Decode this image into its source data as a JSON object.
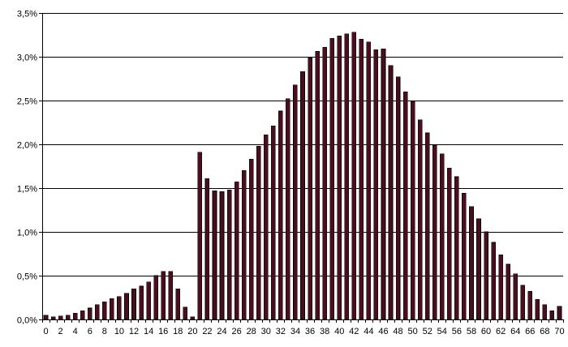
{
  "chart_data": {
    "type": "bar",
    "title": "",
    "xlabel": "",
    "ylabel": "",
    "categories": [
      0,
      1,
      2,
      3,
      4,
      5,
      6,
      7,
      8,
      9,
      10,
      11,
      12,
      13,
      14,
      15,
      16,
      17,
      18,
      19,
      20,
      21,
      22,
      23,
      24,
      25,
      26,
      27,
      28,
      29,
      30,
      31,
      32,
      33,
      34,
      35,
      36,
      37,
      38,
      39,
      40,
      41,
      42,
      43,
      44,
      45,
      46,
      47,
      48,
      49,
      50,
      51,
      52,
      53,
      54,
      55,
      56,
      57,
      58,
      59,
      60,
      61,
      62,
      63,
      64,
      65,
      66,
      67,
      68,
      69,
      70
    ],
    "x_tick_labels": [
      "0",
      "2",
      "4",
      "6",
      "8",
      "10",
      "12",
      "14",
      "16",
      "18",
      "20",
      "22",
      "24",
      "26",
      "28",
      "30",
      "32",
      "34",
      "36",
      "38",
      "40",
      "42",
      "44",
      "46",
      "48",
      "50",
      "52",
      "54",
      "56",
      "58",
      "60",
      "62",
      "64",
      "66",
      "68",
      "70"
    ],
    "y_tick_labels": [
      "0,0%",
      "0,5%",
      "1,0%",
      "1,5%",
      "2,0%",
      "2,5%",
      "3,0%",
      "3,5%"
    ],
    "y_ticks": [
      0,
      0.5,
      1.0,
      1.5,
      2.0,
      2.5,
      3.0,
      3.5
    ],
    "values": [
      0.05,
      0.03,
      0.04,
      0.05,
      0.07,
      0.1,
      0.13,
      0.17,
      0.2,
      0.24,
      0.26,
      0.3,
      0.35,
      0.38,
      0.43,
      0.5,
      0.55,
      0.55,
      0.35,
      0.14,
      0.03,
      1.91,
      1.61,
      1.47,
      1.46,
      1.48,
      1.57,
      1.7,
      1.83,
      1.98,
      2.11,
      2.21,
      2.38,
      2.52,
      2.68,
      2.83,
      2.99,
      3.06,
      3.11,
      3.21,
      3.24,
      3.26,
      3.28,
      3.2,
      3.17,
      3.08,
      3.09,
      2.9,
      2.77,
      2.6,
      2.49,
      2.28,
      2.13,
      1.99,
      1.89,
      1.73,
      1.63,
      1.44,
      1.29,
      1.15,
      1.0,
      0.88,
      0.74,
      0.63,
      0.52,
      0.39,
      0.32,
      0.23,
      0.17,
      0.1,
      0.15
    ],
    "ylim": [
      0,
      3.5
    ],
    "grid": true,
    "legend": "none",
    "colors": {
      "bar_fill": "#4a0f1e",
      "bar_stroke": "#000000",
      "grid": "#000000",
      "background": "#ffffff"
    }
  }
}
